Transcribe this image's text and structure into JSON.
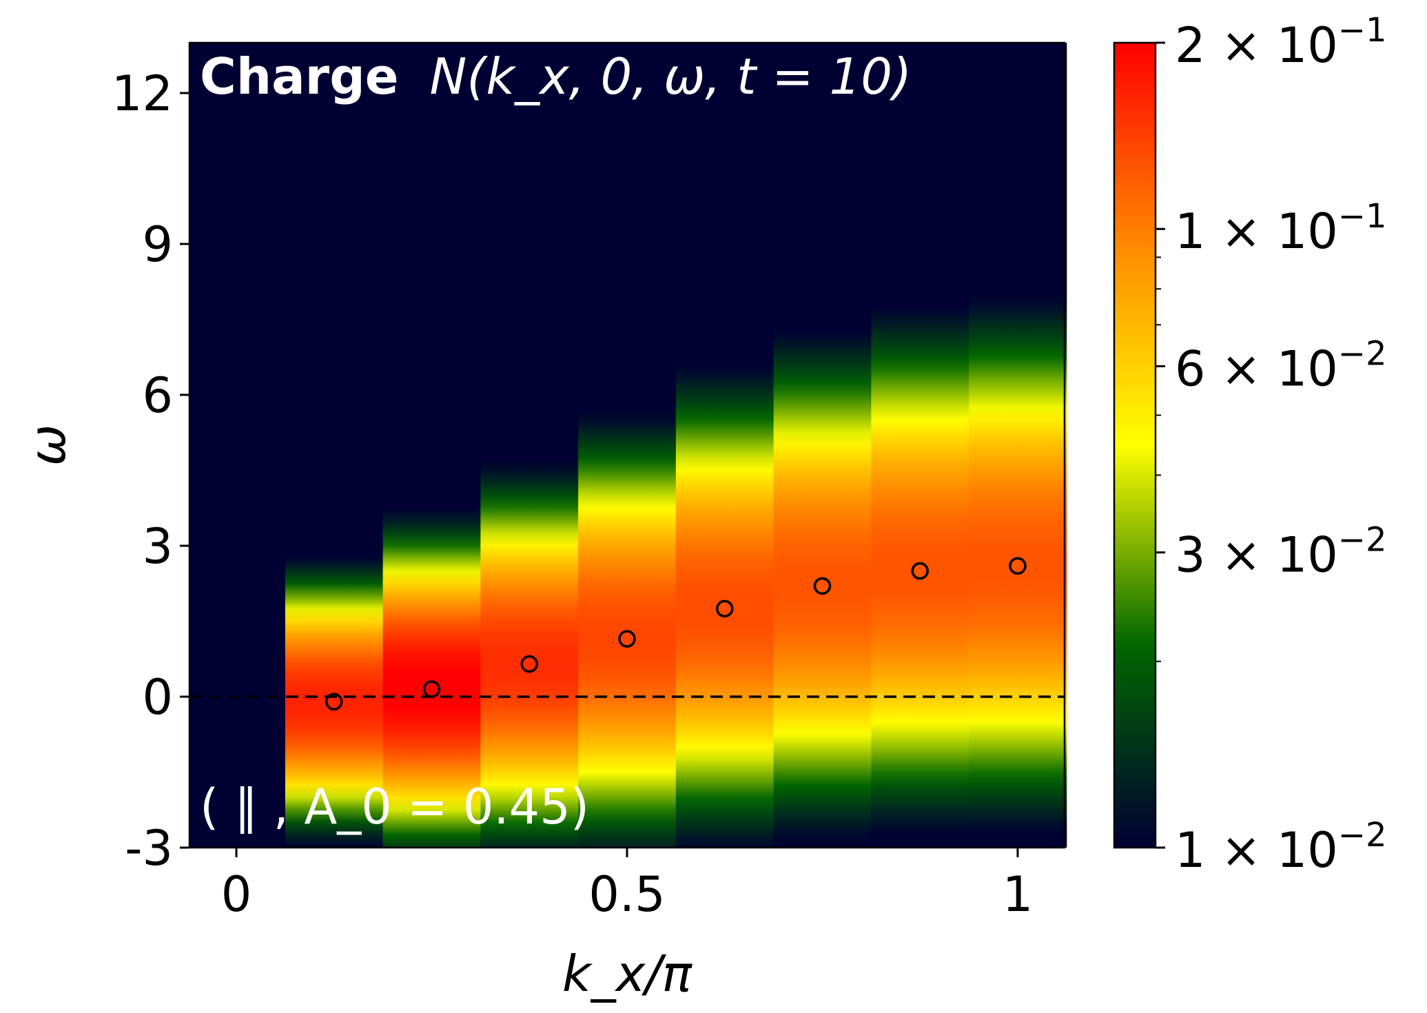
{
  "chart_data": {
    "type": "heatmap",
    "title": {
      "bold_part": "Charge",
      "math_part": "N(k_x, 0, ω, t = 10)"
    },
    "annotation": "( ∥ , A_0 = 0.45)",
    "xlabel": "k_x/π",
    "ylabel": "ω",
    "xlim": [
      -0.06,
      1.06
    ],
    "ylim": [
      -3,
      13
    ],
    "xticks": [
      {
        "value": 0,
        "label": "0"
      },
      {
        "value": 0.5,
        "label": "0.5"
      },
      {
        "value": 1,
        "label": "1"
      }
    ],
    "yticks": [
      {
        "value": -3,
        "label": "-3"
      },
      {
        "value": 0,
        "label": "0"
      },
      {
        "value": 3,
        "label": "3"
      },
      {
        "value": 6,
        "label": "6"
      },
      {
        "value": 9,
        "label": "9"
      },
      {
        "value": 12,
        "label": "12"
      }
    ],
    "colorbar": {
      "scale": "log",
      "min": 0.01,
      "max": 0.2,
      "ticks": [
        {
          "value": 0.2,
          "mantissa": "2",
          "exponent": "−1"
        },
        {
          "value": 0.1,
          "mantissa": "1",
          "exponent": "−1"
        },
        {
          "value": 0.06,
          "mantissa": "6",
          "exponent": "−2"
        },
        {
          "value": 0.03,
          "mantissa": "3",
          "exponent": "−2"
        },
        {
          "value": 0.01,
          "mantissa": "1",
          "exponent": "−2"
        }
      ],
      "colors": [
        "#000033",
        "#006600",
        "#ffff00",
        "#ff8800",
        "#ff0000"
      ]
    },
    "columns": [
      {
        "kx": 0.125,
        "peak_omega": -0.1,
        "peak_value": 0.16,
        "width": 1.5
      },
      {
        "kx": 0.25,
        "peak_omega": 0.15,
        "peak_value": 0.2,
        "width": 1.8
      },
      {
        "kx": 0.375,
        "peak_omega": 0.65,
        "peak_value": 0.15,
        "width": 2.1
      },
      {
        "kx": 0.5,
        "peak_omega": 1.15,
        "peak_value": 0.13,
        "width": 2.4
      },
      {
        "kx": 0.625,
        "peak_omega": 1.75,
        "peak_value": 0.125,
        "width": 2.6
      },
      {
        "kx": 0.75,
        "peak_omega": 2.2,
        "peak_value": 0.12,
        "width": 2.75
      },
      {
        "kx": 0.875,
        "peak_omega": 2.5,
        "peak_value": 0.12,
        "width": 2.85
      },
      {
        "kx": 1.0,
        "peak_omega": 2.6,
        "peak_value": 0.12,
        "width": 2.9
      }
    ],
    "points": [
      {
        "x": 0.125,
        "y": -0.1
      },
      {
        "x": 0.25,
        "y": 0.15
      },
      {
        "x": 0.375,
        "y": 0.65
      },
      {
        "x": 0.5,
        "y": 1.15
      },
      {
        "x": 0.625,
        "y": 1.75
      },
      {
        "x": 0.75,
        "y": 2.2
      },
      {
        "x": 0.875,
        "y": 2.5
      },
      {
        "x": 1.0,
        "y": 2.6
      }
    ],
    "reference_line": {
      "y": 0,
      "style": "dashed"
    }
  }
}
